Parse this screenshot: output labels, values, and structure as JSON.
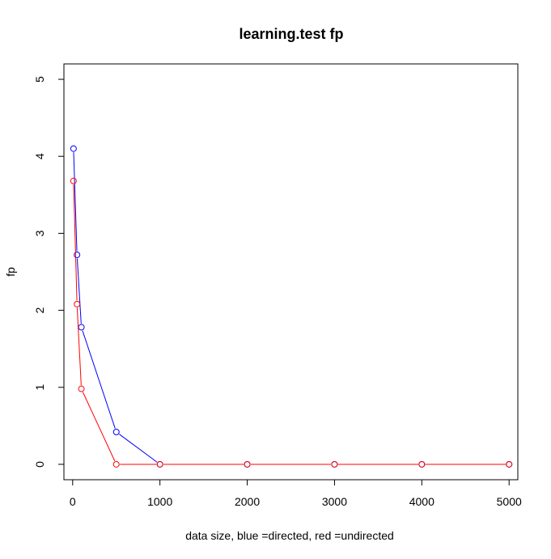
{
  "chart_data": {
    "type": "line",
    "title": "learning.test fp",
    "xlabel": "data size,  blue =directed,  red =undirected",
    "ylabel": "fp",
    "xlim": [
      -100,
      5100
    ],
    "ylim": [
      -0.2,
      5.2
    ],
    "x_ticks": [
      0,
      1000,
      2000,
      3000,
      4000,
      5000
    ],
    "x_tick_labels": [
      "0",
      "1000",
      "2000",
      "3000",
      "4000",
      "5000"
    ],
    "y_ticks": [
      0,
      1,
      2,
      3,
      4,
      5
    ],
    "y_tick_labels": [
      "0",
      "1",
      "2",
      "3",
      "4",
      "5"
    ],
    "grid": false,
    "series": [
      {
        "color": "#0000ff",
        "x": [
          10,
          50,
          100,
          500,
          1000,
          2000,
          3000,
          4000,
          5000
        ],
        "y": [
          4.1,
          2.72,
          1.78,
          0.42,
          0.0,
          0.0,
          0.0,
          0.0,
          0.0
        ]
      },
      {
        "color": "#ff0000",
        "x": [
          10,
          50,
          100,
          500,
          1000,
          2000,
          3000,
          4000,
          5000
        ],
        "y": [
          3.68,
          2.08,
          0.98,
          0.0,
          0.0,
          0.0,
          0.0,
          0.0,
          0.0
        ]
      }
    ]
  }
}
